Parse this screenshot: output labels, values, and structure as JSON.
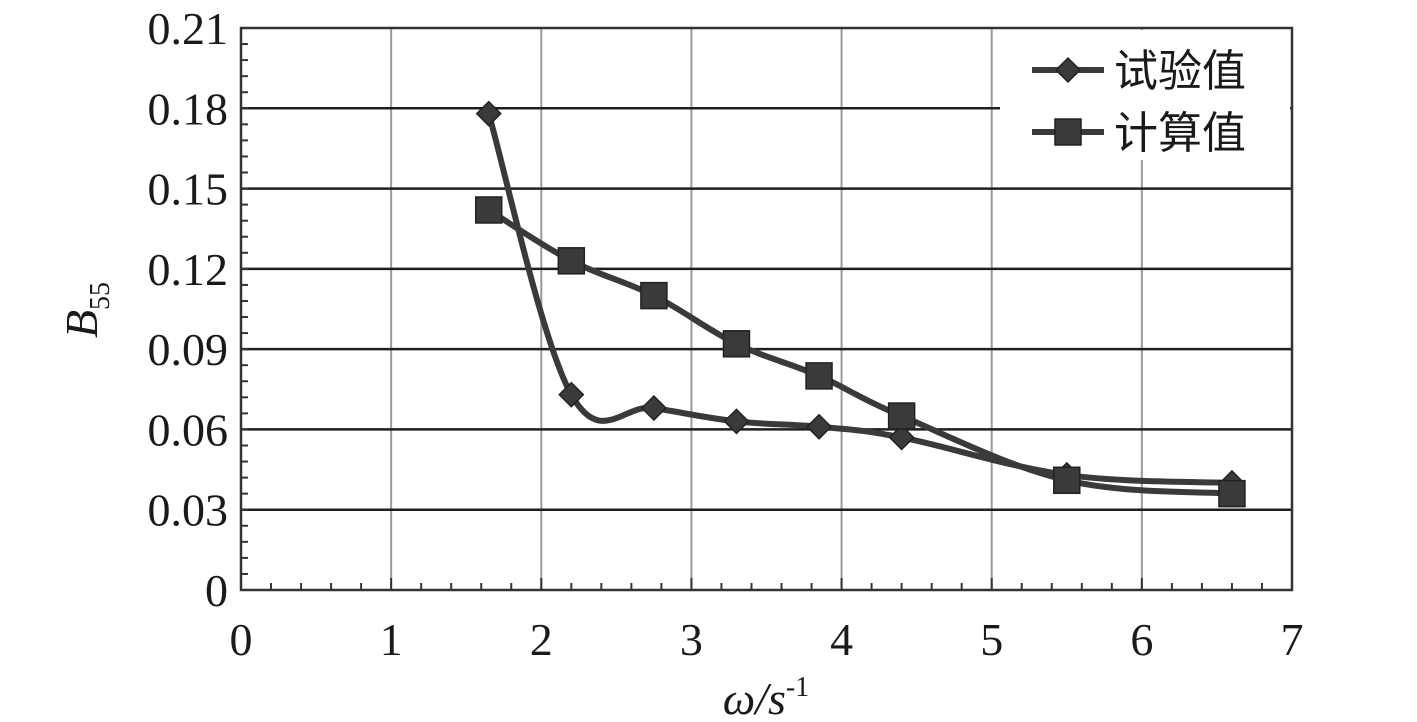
{
  "chart_data": {
    "type": "line",
    "xlabel": "ω/s",
    "xlabel_sup": "-1",
    "ylabel": "B",
    "ylabel_sub": "55",
    "xlim": [
      0,
      7
    ],
    "ylim": [
      0,
      0.21
    ],
    "x_ticks": [
      "0",
      "1",
      "2",
      "3",
      "4",
      "5",
      "6",
      "7"
    ],
    "y_ticks": [
      "0",
      "0.03",
      "0.06",
      "0.09",
      "0.12",
      "0.15",
      "0.18",
      "0.21"
    ],
    "grid": true,
    "legend_position": "top-right",
    "series": [
      {
        "name": "试验值",
        "marker": "diamond",
        "color": "#3a3a3a",
        "x": [
          1.65,
          2.2,
          2.75,
          3.3,
          3.85,
          4.4,
          5.5,
          6.6
        ],
        "y": [
          0.178,
          0.073,
          0.068,
          0.063,
          0.061,
          0.057,
          0.043,
          0.04
        ]
      },
      {
        "name": "计算值",
        "marker": "square",
        "color": "#3a3a3a",
        "x": [
          1.65,
          2.2,
          2.75,
          3.3,
          3.85,
          4.4,
          5.5,
          6.6
        ],
        "y": [
          0.142,
          0.123,
          0.11,
          0.092,
          0.08,
          0.065,
          0.041,
          0.036
        ]
      }
    ]
  }
}
